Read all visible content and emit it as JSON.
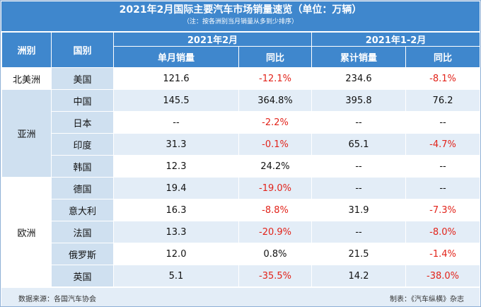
{
  "title": "2021年2月国际主要汽车市场销量速览（单位：万辆）",
  "note": "（注：按各洲别当月销量从多到少排序）",
  "headers": {
    "continent": "洲别",
    "country": "国别",
    "period1": "2021年2月",
    "period2": "2021年1-2月",
    "monthly_sales": "单月销量",
    "yoy1": "同比",
    "cumulative_sales": "累计销量",
    "yoy2": "同比"
  },
  "continents": {
    "north_america": "北美洲",
    "asia": "亚洲",
    "europe": "欧洲"
  },
  "rows": [
    {
      "country": "美国",
      "monthly": "121.6",
      "yoy1": "-12.1%",
      "cum": "234.6",
      "yoy2": "-8.1%"
    },
    {
      "country": "中国",
      "monthly": "145.5",
      "yoy1": "364.8%",
      "cum": "395.8",
      "yoy2": "76.2"
    },
    {
      "country": "日本",
      "monthly": "--",
      "yoy1": "-2.2%",
      "cum": "--",
      "yoy2": "--"
    },
    {
      "country": "印度",
      "monthly": "31.3",
      "yoy1": "-0.1%",
      "cum": "65.1",
      "yoy2": "-4.7%"
    },
    {
      "country": "韩国",
      "monthly": "12.3",
      "yoy1": "24.2%",
      "cum": "--",
      "yoy2": "--"
    },
    {
      "country": "德国",
      "monthly": "19.4",
      "yoy1": "-19.0%",
      "cum": "--",
      "yoy2": "--"
    },
    {
      "country": "意大利",
      "monthly": "16.3",
      "yoy1": "-8.8%",
      "cum": "31.9",
      "yoy2": "-7.3%"
    },
    {
      "country": "法国",
      "monthly": "13.3",
      "yoy1": "-20.9%",
      "cum": "--",
      "yoy2": "-8.0%"
    },
    {
      "country": "俄罗斯",
      "monthly": "12.0",
      "yoy1": "0.8%",
      "cum": "21.5",
      "yoy2": "-1.4%"
    },
    {
      "country": "英国",
      "monthly": "5.1",
      "yoy1": "-35.5%",
      "cum": "14.2",
      "yoy2": "-38.0%"
    }
  ],
  "footer": {
    "source": "数据来源：各国汽车协会",
    "maker": "制表：《汽车纵横》杂志"
  },
  "colors": {
    "header_blue": "#3f87cd",
    "band_light": "#e3edf7",
    "country_col": "#cfe0f0",
    "negative_red": "#e2231a"
  }
}
